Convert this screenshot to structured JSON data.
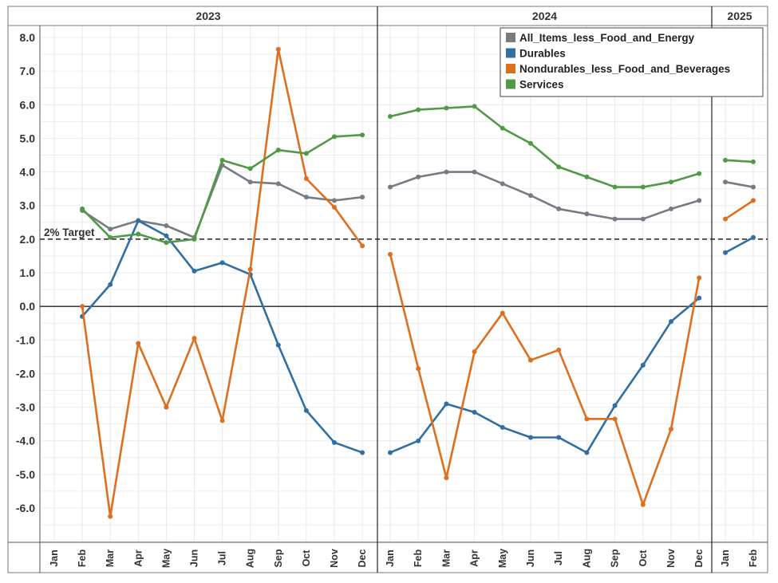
{
  "chart_data": {
    "type": "line",
    "title": "",
    "xlabel": "",
    "ylabel": "",
    "ylim": [
      -7.0,
      8.5
    ],
    "yticks": [
      8.0,
      7.0,
      6.0,
      5.0,
      4.0,
      3.0,
      2.0,
      1.0,
      0.0,
      -1.0,
      -2.0,
      -3.0,
      -4.0,
      -5.0,
      -6.0
    ],
    "ytick_labels": [
      "8.0",
      "7.0",
      "6.0",
      "5.0",
      "4.0",
      "3.0",
      "2.0",
      "1.0",
      "0.0",
      "-1.0",
      "-2.0",
      "-3.0",
      "-4.0",
      "-5.0",
      "-6.0"
    ],
    "grid": true,
    "legend_position": "top-right",
    "target_line": {
      "value": 2.0,
      "label": "2% Target",
      "color": "#333333"
    },
    "zero_line": 0.0,
    "panels": [
      {
        "year": "2023",
        "months": [
          "Jan",
          "Feb",
          "Mar",
          "Apr",
          "May",
          "Jun",
          "Jul",
          "Aug",
          "Sep",
          "Oct",
          "Nov",
          "Dec"
        ]
      },
      {
        "year": "2024",
        "months": [
          "Jan",
          "Feb",
          "Mar",
          "Apr",
          "May",
          "Jun",
          "Jul",
          "Aug",
          "Sep",
          "Oct",
          "Nov",
          "Dec"
        ]
      },
      {
        "year": "2025",
        "months": [
          "Jan",
          "Feb"
        ]
      }
    ],
    "series": [
      {
        "name": "All_Items_less_Food_and_Energy",
        "color": "#767b84",
        "values": [
          [
            null,
            2.85,
            2.3,
            2.55,
            2.4,
            2.05,
            4.2,
            3.7,
            3.65,
            3.25,
            3.15,
            3.25
          ],
          [
            3.55,
            3.85,
            4.0,
            4.0,
            3.65,
            3.3,
            2.9,
            2.75,
            2.6,
            2.6,
            2.9,
            3.15
          ],
          [
            3.7,
            3.55
          ]
        ]
      },
      {
        "name": "Durables",
        "color": "#2f6fa3",
        "values": [
          [
            null,
            -0.3,
            0.65,
            2.55,
            2.1,
            1.05,
            1.3,
            0.95,
            -1.15,
            -3.1,
            -4.05,
            -4.35
          ],
          [
            -4.35,
            -4.0,
            -2.9,
            -3.15,
            -3.6,
            -3.9,
            -3.9,
            -4.35,
            -2.95,
            -1.75,
            -0.45,
            0.25
          ],
          [
            1.6,
            2.05
          ]
        ]
      },
      {
        "name": "Nondurables_less_Food_and_Beverages",
        "color": "#dd6f1f",
        "values": [
          [
            null,
            0.0,
            -6.25,
            -1.1,
            -3.0,
            -0.95,
            -3.4,
            1.1,
            7.65,
            3.8,
            2.95,
            1.8
          ],
          [
            1.55,
            -1.85,
            -5.1,
            -1.35,
            -0.2,
            -1.6,
            -1.3,
            -3.35,
            -3.35,
            -5.9,
            -3.65,
            0.85
          ],
          [
            2.6,
            3.15
          ]
        ]
      },
      {
        "name": "Services",
        "color": "#4f9a45",
        "values": [
          [
            null,
            2.9,
            2.05,
            2.15,
            1.9,
            2.0,
            4.35,
            4.1,
            4.65,
            4.55,
            5.05,
            5.1
          ],
          [
            5.65,
            5.85,
            5.9,
            5.95,
            5.3,
            4.85,
            4.15,
            3.85,
            3.55,
            3.55,
            3.7,
            3.95
          ],
          [
            4.35,
            4.3
          ]
        ]
      }
    ]
  }
}
